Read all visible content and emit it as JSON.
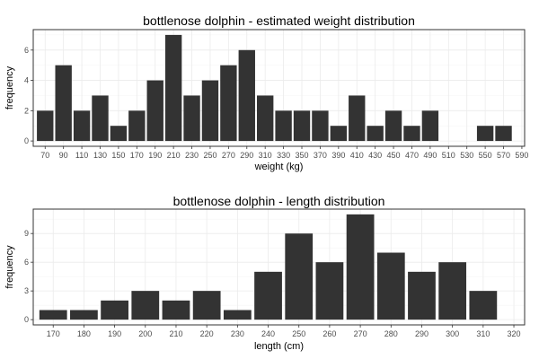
{
  "chart_data": [
    {
      "type": "bar",
      "title": "bottlenose dolphin - estimated weight distribution",
      "xlabel": "weight (kg)",
      "ylabel": "frequency",
      "x": [
        70,
        90,
        110,
        130,
        150,
        170,
        190,
        210,
        230,
        250,
        270,
        290,
        310,
        330,
        350,
        370,
        390,
        410,
        430,
        450,
        470,
        490,
        510,
        530,
        550,
        570
      ],
      "values": [
        2,
        5,
        2,
        3,
        1,
        2,
        4,
        7,
        3,
        4,
        5,
        6,
        3,
        2,
        2,
        2,
        1,
        3,
        1,
        2,
        1,
        2,
        0,
        0,
        1,
        1
      ],
      "xticks": [
        70,
        90,
        110,
        130,
        150,
        170,
        190,
        210,
        230,
        250,
        270,
        290,
        310,
        330,
        350,
        370,
        390,
        410,
        430,
        450,
        470,
        490,
        510,
        530,
        550,
        570,
        590
      ],
      "xlim": [
        57,
        593
      ],
      "bin_width": 20,
      "yticks": [
        0,
        2,
        4,
        6
      ],
      "ylim": [
        -0.35,
        7.35
      ],
      "bar_color": "#333333",
      "grid": true,
      "legend": "none"
    },
    {
      "type": "bar",
      "title": "bottlenose dolphin - length distribution",
      "xlabel": "length (cm)",
      "ylabel": "frequency",
      "x": [
        170,
        180,
        190,
        200,
        210,
        220,
        230,
        240,
        250,
        260,
        270,
        280,
        290,
        300,
        310
      ],
      "values": [
        1,
        1,
        2,
        3,
        2,
        3,
        1,
        5,
        9,
        6,
        11,
        7,
        5,
        6,
        3
      ],
      "xticks": [
        170,
        180,
        190,
        200,
        210,
        220,
        230,
        240,
        250,
        260,
        270,
        280,
        290,
        300,
        310,
        320
      ],
      "xlim": [
        163.5,
        323.5
      ],
      "bin_width": 10,
      "yticks": [
        0,
        3,
        6,
        9
      ],
      "ylim": [
        -0.55,
        11.55
      ],
      "bar_color": "#333333",
      "grid": true,
      "legend": "none"
    }
  ]
}
